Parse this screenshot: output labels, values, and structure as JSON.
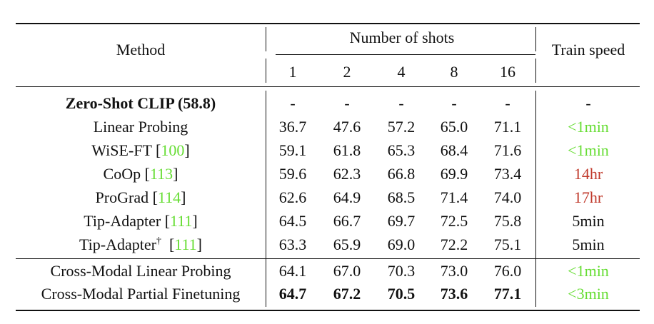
{
  "table": {
    "header": {
      "method": "Method",
      "shots_group": "Number of shots",
      "train_speed": "Train speed",
      "shots": [
        "1",
        "2",
        "4",
        "8",
        "16"
      ]
    },
    "zero_shot": {
      "label": "Zero-Shot CLIP (58.8)",
      "values": [
        "-",
        "-",
        "-",
        "-",
        "-"
      ],
      "speed": "-"
    },
    "rows": [
      {
        "method": "Linear Probing",
        "cite": "",
        "dagger": "",
        "values": [
          "36.7",
          "47.6",
          "57.2",
          "65.0",
          "71.1"
        ],
        "speed": "<1min",
        "speed_color": "green"
      },
      {
        "method": "WiSE-FT [",
        "cite": "100",
        "close": "]",
        "dagger": "",
        "values": [
          "59.1",
          "61.8",
          "65.3",
          "68.4",
          "71.6"
        ],
        "speed": "<1min",
        "speed_color": "green"
      },
      {
        "method": "CoOp [",
        "cite": "113",
        "close": "]",
        "dagger": "",
        "values": [
          "59.6",
          "62.3",
          "66.8",
          "69.9",
          "73.4"
        ],
        "speed": "14hr",
        "speed_color": "red"
      },
      {
        "method": "ProGrad [",
        "cite": "114",
        "close": "]",
        "dagger": "",
        "values": [
          "62.6",
          "64.9",
          "68.5",
          "71.4",
          "74.0"
        ],
        "speed": "17hr",
        "speed_color": "red"
      },
      {
        "method": "Tip-Adapter [",
        "cite": "111",
        "close": "]",
        "dagger": "",
        "values": [
          "64.5",
          "66.7",
          "69.7",
          "72.5",
          "75.8"
        ],
        "speed": "5min",
        "speed_color": "black"
      },
      {
        "method": "Tip-Adapter",
        "cite": "111",
        "close": "]",
        "dagger": "†",
        "values": [
          "63.3",
          "65.9",
          "69.0",
          "72.2",
          "75.1"
        ],
        "speed": "5min",
        "speed_color": "black"
      }
    ],
    "ours": [
      {
        "method": "Cross-Modal Linear Probing",
        "values": [
          "64.1",
          "67.0",
          "70.3",
          "73.0",
          "76.0"
        ],
        "speed": "<1min",
        "bold": false
      },
      {
        "method": "Cross-Modal Partial Finetuning",
        "values": [
          "64.7",
          "67.2",
          "70.5",
          "73.6",
          "77.1"
        ],
        "speed": "<3min",
        "bold": true
      }
    ]
  },
  "colors": {
    "cite_green": "#66dd33",
    "speed_red": "#c0392b",
    "text": "#111111"
  }
}
